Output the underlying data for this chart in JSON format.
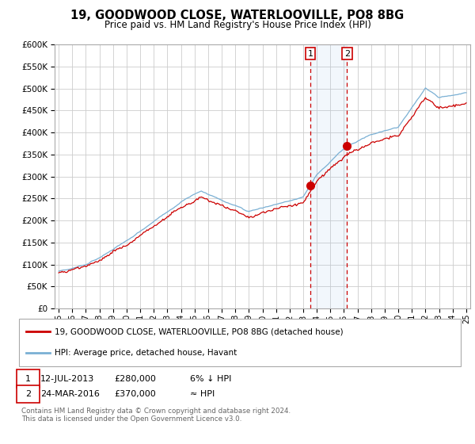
{
  "title": "19, GOODWOOD CLOSE, WATERLOOVILLE, PO8 8BG",
  "subtitle": "Price paid vs. HM Land Registry's House Price Index (HPI)",
  "legend_line1": "19, GOODWOOD CLOSE, WATERLOOVILLE, PO8 8BG (detached house)",
  "legend_line2": "HPI: Average price, detached house, Havant",
  "table_rows": [
    {
      "num": "1",
      "date": "12-JUL-2013",
      "price": "£280,000",
      "relation": "6% ↓ HPI"
    },
    {
      "num": "2",
      "date": "24-MAR-2016",
      "price": "£370,000",
      "relation": "≈ HPI"
    }
  ],
  "footnote": "Contains HM Land Registry data © Crown copyright and database right 2024.\nThis data is licensed under the Open Government Licence v3.0.",
  "house_color": "#cc0000",
  "hpi_color": "#7ab0d4",
  "marker1_x": 2013.53,
  "marker1_y": 280000,
  "marker2_x": 2016.23,
  "marker2_y": 370000,
  "ylim": [
    0,
    600000
  ],
  "yticks": [
    0,
    50000,
    100000,
    150000,
    200000,
    250000,
    300000,
    350000,
    400000,
    450000,
    500000,
    550000,
    600000
  ],
  "xlim_start": 1994.7,
  "xlim_end": 2025.3,
  "background_color": "#ffffff",
  "plot_bg_color": "#ffffff",
  "grid_color": "#cccccc"
}
